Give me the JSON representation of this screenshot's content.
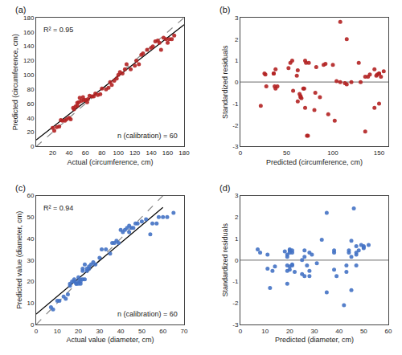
{
  "chart_data": [
    {
      "type": "scatter",
      "title": "(a)",
      "xlabel": "Actual (circumference, cm)",
      "ylabel": "Predicted (circumference, cm)",
      "annotations": [
        "R² = 0.95",
        "n (calibration) = 60"
      ],
      "xlim": [
        0,
        180
      ],
      "ylim": [
        0,
        180
      ],
      "xticks": [
        20,
        40,
        60,
        80,
        100,
        120,
        140,
        160,
        180
      ],
      "yticks": [
        0,
        20,
        40,
        60,
        80,
        100,
        120,
        140,
        160,
        180
      ],
      "grid": false,
      "series": [
        {
          "type": "line",
          "line_style": "dashed",
          "color": "#888888",
          "x": [
            0,
            180
          ],
          "values": [
            0,
            180
          ]
        },
        {
          "type": "line",
          "line_style": "solid",
          "color": "#000000",
          "x": [
            0,
            180
          ],
          "values": [
            9.1005,
            170.1539
          ]
        },
        {
          "type": "scatter",
          "color": "#b22222",
          "x": [
            20,
            22,
            25,
            28,
            30,
            32,
            35,
            37,
            40,
            42,
            45,
            46,
            48,
            50,
            50,
            52,
            53,
            55,
            57,
            58,
            60,
            62,
            63,
            65,
            68,
            70,
            72,
            75,
            78,
            80,
            85,
            88,
            90,
            92,
            95,
            98,
            100,
            102,
            105,
            108,
            110,
            115,
            120,
            122,
            125,
            128,
            130,
            135,
            140,
            142,
            145,
            148,
            150,
            152,
            155,
            158,
            160,
            162,
            165,
            168
          ],
          "values": [
            26,
            22,
            27,
            28,
            37,
            36,
            36,
            38,
            40,
            38,
            54,
            52,
            56,
            61,
            57,
            62,
            68,
            64,
            69,
            65,
            65,
            62,
            66,
            71,
            70,
            70,
            74,
            72,
            73,
            81,
            80,
            82,
            90,
            86,
            92,
            95,
            100,
            104,
            102,
            108,
            115,
            108,
            113,
            120,
            115,
            128,
            130,
            135,
            138,
            140,
            147,
            148,
            145,
            135,
            152,
            150,
            145,
            150,
            150,
            155
          ]
        }
      ]
    },
    {
      "type": "scatter",
      "title": "(b)",
      "xlabel": "Predicted (circumference, cm)",
      "ylabel": "Standardized residuals",
      "xlim": [
        0,
        160
      ],
      "ylim": [
        -3,
        3
      ],
      "xticks": [
        0,
        50,
        100,
        150
      ],
      "yticks": [
        -3,
        -2,
        -1,
        0,
        1,
        2,
        3
      ],
      "grid": false,
      "series": [
        {
          "type": "line",
          "line_style": "solid",
          "color": "#888888",
          "x": [
            0,
            160
          ],
          "values": [
            0,
            0
          ]
        },
        {
          "type": "scatter",
          "color": "#b22222",
          "x": [
            26,
            22,
            27,
            28,
            37,
            36,
            36,
            38,
            40,
            38,
            54,
            52,
            56,
            61,
            57,
            62,
            68,
            64,
            69,
            65,
            65,
            62,
            66,
            71,
            70,
            70,
            74,
            72,
            73,
            81,
            80,
            82,
            90,
            86,
            92,
            95,
            100,
            104,
            102,
            108,
            115,
            108,
            113,
            120,
            115,
            128,
            130,
            135,
            138,
            140,
            147,
            148,
            145,
            135,
            152,
            150,
            145,
            150,
            150,
            155
          ],
          "values": [
            0.4,
            -1.1,
            0.35,
            -0.2,
            -0.2,
            0.4,
            0.4,
            -0.3,
            -0.2,
            0.6,
            0.9,
            0.65,
            1.0,
            0.3,
            -0.4,
            0.55,
            -0.3,
            -0.55,
            -0.3,
            -0.65,
            -0.7,
            -0.9,
            -0.75,
            0.9,
            1.0,
            -1.2,
            0.9,
            -2.5,
            -2.5,
            -0.5,
            -1.3,
            0.7,
            0.8,
            -0.7,
            0.85,
            -1.5,
            0.8,
            0.05,
            -1.8,
            2.8,
            2.0,
            0.0,
            -0.05,
            0.0,
            -0.1,
            0.9,
            0.0,
            -2.3,
            0.25,
            0.35,
            0.3,
            0.35,
            -1.2,
            0.25,
            0.25,
            -1.0,
            0.6,
            0.4,
            0.4,
            0.5
          ]
        }
      ]
    },
    {
      "type": "scatter",
      "title": "(c)",
      "xlabel": "Actual value (diameter, cm)",
      "ylabel": "Predicted value (diameter, cm)",
      "annotations": [
        "R² = 0.94",
        "n (calibration) = 60"
      ],
      "xlim": [
        0,
        70
      ],
      "ylim": [
        0,
        60
      ],
      "xticks": [
        0,
        10,
        20,
        30,
        40,
        50,
        60,
        70
      ],
      "yticks": [
        0,
        10,
        20,
        30,
        40,
        50,
        60
      ],
      "grid": false,
      "series": [
        {
          "type": "line",
          "line_style": "dashed",
          "color": "#888888",
          "x": [
            0,
            60
          ],
          "values": [
            0,
            60
          ]
        },
        {
          "type": "line",
          "line_style": "solid",
          "color": "#000000",
          "x": [
            0,
            60
          ],
          "values": [
            4.8043,
            54.5333
          ]
        },
        {
          "type": "scatter",
          "color": "#4472c4",
          "x": [
            7,
            8,
            10,
            11,
            13,
            14,
            15,
            16,
            16,
            17,
            18,
            18,
            18,
            19,
            19,
            20,
            20,
            20,
            21,
            21,
            21,
            22,
            22,
            22,
            23,
            23,
            24,
            24,
            25,
            25,
            26,
            27,
            28,
            30,
            31,
            33,
            35,
            36,
            37,
            38,
            39,
            40,
            41,
            42,
            43,
            44,
            44,
            45,
            46,
            47,
            48,
            50,
            52,
            54,
            55,
            57,
            58,
            60,
            62,
            65
          ],
          "values": [
            8,
            7,
            11,
            11,
            13,
            12,
            14,
            19,
            18,
            20,
            20,
            21,
            20,
            19,
            19,
            19,
            20,
            22,
            21,
            20,
            19,
            25,
            26,
            21,
            21,
            28,
            25,
            26,
            27,
            26,
            28,
            29,
            28,
            31,
            35,
            35,
            33,
            38,
            38,
            39,
            38,
            44,
            43,
            44,
            45,
            43,
            46,
            45,
            45,
            47,
            47,
            48,
            49,
            42,
            47,
            47,
            50,
            50,
            50,
            52
          ]
        }
      ]
    },
    {
      "type": "scatter",
      "title": "(d)",
      "xlabel": "Predicted (diameter, cm)",
      "ylabel": "Standardized residuals",
      "xlim": [
        0,
        60
      ],
      "ylim": [
        -3,
        3
      ],
      "xticks": [
        0,
        10,
        20,
        30,
        40,
        50,
        60
      ],
      "yticks": [
        -3,
        -2,
        -1,
        0,
        1,
        2,
        3
      ],
      "grid": false,
      "series": [
        {
          "type": "line",
          "line_style": "solid",
          "color": "#888888",
          "x": [
            0,
            60
          ],
          "values": [
            0,
            0
          ]
        },
        {
          "type": "scatter",
          "color": "#4472c4",
          "x": [
            8,
            7,
            11,
            11,
            13,
            12,
            14,
            19,
            18,
            20,
            20,
            21,
            20,
            19,
            19,
            19,
            20,
            22,
            21,
            20,
            19,
            25,
            26,
            21,
            21,
            28,
            25,
            26,
            27,
            26,
            28,
            29,
            28,
            31,
            35,
            35,
            33,
            38,
            38,
            39,
            38,
            44,
            43,
            44,
            45,
            43,
            46,
            45,
            45,
            47,
            47,
            48,
            49,
            42,
            47,
            47,
            50,
            50,
            50,
            52
          ],
          "values": [
            0.35,
            0.5,
            -0.4,
            0.25,
            -0.5,
            -1.3,
            -0.3,
            -1.1,
            0.4,
            -0.3,
            0.35,
            -0.2,
            0.45,
            -0.5,
            0.25,
            -0.25,
            0.5,
            -0.55,
            0.35,
            -0.45,
            0.15,
            0.0,
            -0.75,
            0.45,
            -0.25,
            0.35,
            -0.65,
            0.15,
            -0.25,
            0.45,
            -0.75,
            0.25,
            -0.5,
            -0.15,
            2.2,
            -1.5,
            0.95,
            -0.45,
            0.35,
            -0.75,
            0.45,
            0.35,
            -0.55,
            0.45,
            0.15,
            -0.25,
            2.4,
            -1.4,
            0.9,
            0.35,
            -0.25,
            0.45,
            0.7,
            -2.1,
            0.65,
            0.25,
            0.55,
            0.65,
            0.6,
            0.7
          ]
        }
      ]
    }
  ]
}
